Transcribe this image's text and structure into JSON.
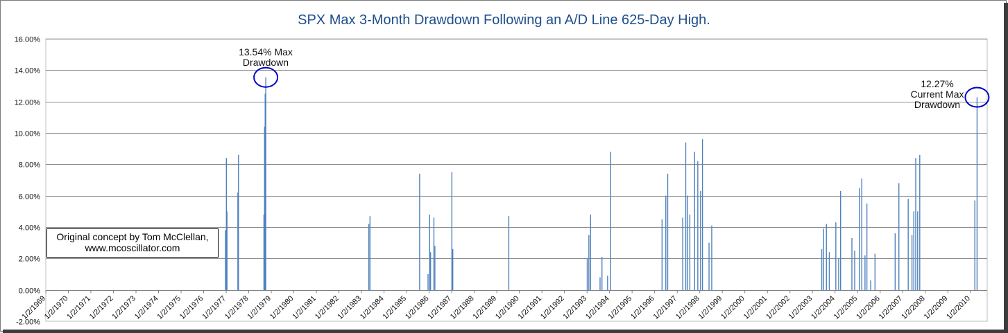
{
  "chart_data": {
    "type": "area",
    "title": "SPX Max 3-Month Drawdown Following an A/D Line 625-Day High.",
    "xlabel": "",
    "ylabel": "",
    "ylim": [
      -0.02,
      0.16
    ],
    "yticks": [
      "16.00%",
      "14.00%",
      "12.00%",
      "10.00%",
      "8.00%",
      "6.00%",
      "4.00%",
      "2.00%",
      "0.00%",
      "-2.00%"
    ],
    "xticks": [
      "1/2/1969",
      "1/2/1970",
      "1/2/1971",
      "1/2/1972",
      "1/2/1973",
      "1/2/1974",
      "1/2/1975",
      "1/2/1976",
      "1/2/1977",
      "1/2/1978",
      "1/2/1979",
      "1/2/1980",
      "1/2/1981",
      "1/2/1982",
      "1/2/1983",
      "1/2/1984",
      "1/2/1985",
      "1/2/1986",
      "1/2/1987",
      "1/2/1988",
      "1/2/1989",
      "1/2/1990",
      "1/2/1991",
      "1/2/1992",
      "1/2/1993",
      "1/2/1994",
      "1/2/1995",
      "1/2/1996",
      "1/2/1997",
      "1/2/1998",
      "1/2/1999",
      "1/2/2000",
      "1/2/2001",
      "1/2/2002",
      "1/2/2003",
      "1/2/2004",
      "1/2/2005",
      "1/2/2006",
      "1/2/2007",
      "1/2/2008",
      "1/2/2009",
      "1/2/2010"
    ],
    "grid": true,
    "legend": "none",
    "series_color": "#4f81bd",
    "x": [
      "1976-12-20",
      "1977-01-05",
      "1977-01-15",
      "1977-07-10",
      "1977-07-20",
      "1978-09-05",
      "1978-09-15",
      "1978-09-25",
      "1978-10-05",
      "1983-05-01",
      "1983-05-20",
      "1985-08-01",
      "1985-12-15",
      "1986-01-10",
      "1986-01-25",
      "1986-03-20",
      "1986-04-05",
      "1987-01-05",
      "1987-01-20",
      "1989-07-15",
      "1993-01-05",
      "1993-02-01",
      "1993-03-01",
      "1993-08-01",
      "1993-09-01",
      "1993-12-01",
      "1994-01-20",
      "1996-05-01",
      "1996-07-01",
      "1996-08-01",
      "1997-04-01",
      "1997-05-20",
      "1997-06-15",
      "1997-07-25",
      "1997-10-10",
      "1997-12-01",
      "1998-01-15",
      "1998-02-15",
      "1998-06-01",
      "1998-07-15",
      "2003-06-01",
      "2003-07-01",
      "2003-08-15",
      "2003-10-01",
      "2004-01-15",
      "2004-03-01",
      "2004-04-01",
      "2004-10-01",
      "2004-11-15",
      "2005-02-01",
      "2005-03-10",
      "2005-05-01",
      "2005-06-01",
      "2005-08-01",
      "2005-10-10",
      "2006-09-01",
      "2006-11-01",
      "2007-04-01",
      "2007-06-01",
      "2007-07-01",
      "2007-08-01",
      "2007-09-01",
      "2007-10-05",
      "2010-03-15",
      "2010-04-20"
    ],
    "values": [
      0.038,
      0.084,
      0.05,
      0.062,
      0.086,
      0.048,
      0.104,
      0.125,
      0.1354,
      0.042,
      0.047,
      0.074,
      0.01,
      0.048,
      0.024,
      0.046,
      0.028,
      0.075,
      0.026,
      0.047,
      0.02,
      0.035,
      0.048,
      0.008,
      0.021,
      0.009,
      0.088,
      0.045,
      0.06,
      0.074,
      0.046,
      0.094,
      0.06,
      0.048,
      0.088,
      0.082,
      0.063,
      0.096,
      0.03,
      0.041,
      0.026,
      0.039,
      0.042,
      0.024,
      0.043,
      0.02,
      0.063,
      0.033,
      0.025,
      0.065,
      0.071,
      0.022,
      0.055,
      0.006,
      0.023,
      0.036,
      0.068,
      0.058,
      0.035,
      0.05,
      0.084,
      0.05,
      0.086,
      0.057,
      0.1227
    ],
    "annotations": [
      {
        "text": "13.54% Max Drawdown",
        "lines": [
          "13.54% Max",
          "Drawdown"
        ],
        "x": "1978-10-05",
        "y": 0.1354
      },
      {
        "text": "12.27% Current Max Drawdown",
        "lines": [
          "12.27%",
          "Current Max",
          "Drawdown"
        ],
        "x": "2010-04-20",
        "y": 0.1227
      }
    ],
    "credit_lines": [
      "Original concept by Tom McClellan,",
      "www.mcoscillator.com"
    ]
  }
}
